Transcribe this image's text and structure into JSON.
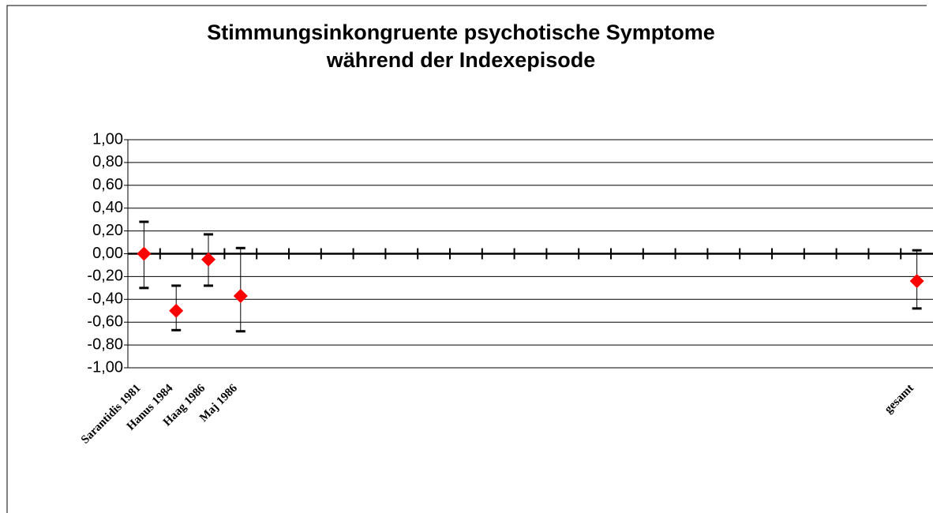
{
  "chart_data": {
    "type": "errorbar",
    "title": [
      "Stimmungsinkongruente psychotische Symptome",
      "während der Indexepisode"
    ],
    "categories": [
      "Sarantidis 1981",
      "Hanus 1984",
      "Haag 1986",
      "Maj 1986",
      null,
      null,
      null,
      null,
      null,
      null,
      null,
      null,
      null,
      null,
      null,
      null,
      null,
      null,
      null,
      null,
      null,
      null,
      null,
      null,
      "gesamt"
    ],
    "values": [
      0.0,
      -0.5,
      -0.05,
      -0.37,
      null,
      null,
      null,
      null,
      null,
      null,
      null,
      null,
      null,
      null,
      null,
      null,
      null,
      null,
      null,
      null,
      null,
      null,
      null,
      null,
      -0.24
    ],
    "lower": [
      -0.3,
      -0.67,
      -0.28,
      -0.68,
      null,
      null,
      null,
      null,
      null,
      null,
      null,
      null,
      null,
      null,
      null,
      null,
      null,
      null,
      null,
      null,
      null,
      null,
      null,
      null,
      -0.48
    ],
    "upper": [
      0.28,
      -0.28,
      0.17,
      0.05,
      null,
      null,
      null,
      null,
      null,
      null,
      null,
      null,
      null,
      null,
      null,
      null,
      null,
      null,
      null,
      null,
      null,
      null,
      null,
      null,
      0.03
    ],
    "color": "#ff0000",
    "ylim": [
      -1,
      1
    ],
    "yticks": [
      {
        "value": 1,
        "label": "1,00"
      },
      {
        "value": 0.8,
        "label": "0,80"
      },
      {
        "value": 0.6,
        "label": "0,60"
      },
      {
        "value": 0.4,
        "label": "0,40"
      },
      {
        "value": 0.2,
        "label": "0,20"
      },
      {
        "value": 0,
        "label": "0,00"
      },
      {
        "value": -0.2,
        "label": "-0,20"
      },
      {
        "value": -0.4,
        "label": "-0,40"
      },
      {
        "value": -0.6,
        "label": "-0,60"
      },
      {
        "value": -0.8,
        "label": "-0,80"
      },
      {
        "value": -1,
        "label": "-1,00"
      }
    ],
    "grid": true
  }
}
